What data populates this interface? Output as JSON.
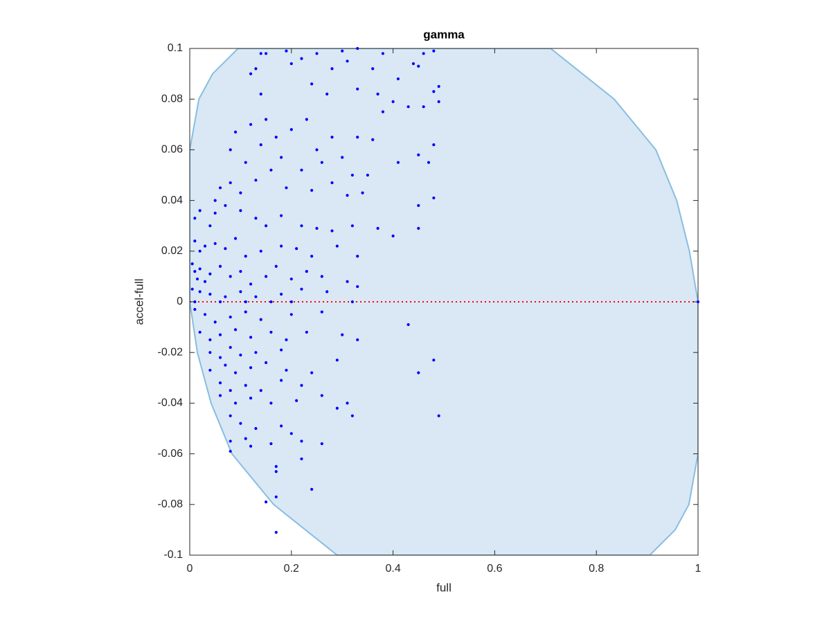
{
  "chart_data": {
    "type": "scatter",
    "title": "gamma",
    "xlabel": "full",
    "ylabel": "accel-full",
    "xlim": [
      0,
      1
    ],
    "ylim": [
      -0.1,
      0.1
    ],
    "xticks": [
      0,
      0.2,
      0.4,
      0.6,
      0.8,
      1
    ],
    "yticks": [
      -0.1,
      -0.08,
      -0.06,
      -0.04,
      -0.02,
      0,
      0.02,
      0.04,
      0.06,
      0.08,
      0.1
    ],
    "color": "#0000ff",
    "region": {
      "color": "#d9e8f4",
      "edge_color": "#88bde0",
      "x": [
        0,
        0.018,
        0.045,
        0.095,
        0.71,
        0.835,
        0.917,
        0.958,
        0.983,
        1,
        1,
        0.982,
        0.955,
        0.905,
        0.29,
        0.165,
        0.083,
        0.042,
        0.015,
        0
      ],
      "y": [
        0.06,
        0.08,
        0.09,
        0.1,
        0.1,
        0.08,
        0.06,
        0.04,
        0.02,
        0,
        -0.06,
        -0.08,
        -0.09,
        -0.1,
        -0.1,
        -0.08,
        -0.06,
        -0.04,
        -0.02,
        0
      ]
    },
    "reference_line": {
      "y": 0,
      "color": "#ff0000"
    },
    "x": [
      0.14,
      0.15,
      0.19,
      0.25,
      0.3,
      0.33,
      0.38,
      0.46,
      0.48,
      0.12,
      0.13,
      0.2,
      0.22,
      0.28,
      0.31,
      0.36,
      0.44,
      0.45,
      0.33,
      0.37,
      0.48,
      0.49,
      0.49,
      0.41,
      0.14,
      0.24,
      0.27,
      0.4,
      0.43,
      0.46,
      0.38,
      0.09,
      0.12,
      0.15,
      0.17,
      0.2,
      0.23,
      0.25,
      0.28,
      0.33,
      0.36,
      0.08,
      0.11,
      0.14,
      0.18,
      0.22,
      0.26,
      0.3,
      0.32,
      0.35,
      0.41,
      0.45,
      0.47,
      0.48,
      0.06,
      0.08,
      0.1,
      0.13,
      0.16,
      0.19,
      0.24,
      0.28,
      0.31,
      0.34,
      0.45,
      0.48,
      0.05,
      0.01,
      0.02,
      0.04,
      0.05,
      0.07,
      0.1,
      0.13,
      0.15,
      0.18,
      0.22,
      0.25,
      0.28,
      0.32,
      0.37,
      0.4,
      0.45,
      0.01,
      0.02,
      0.03,
      0.05,
      0.07,
      0.09,
      0.11,
      0.14,
      0.18,
      0.21,
      0.24,
      0.29,
      0.33,
      0.005,
      0.01,
      0.015,
      0.02,
      0.03,
      0.04,
      0.06,
      0.08,
      0.1,
      0.12,
      0.15,
      0.17,
      0.2,
      0.23,
      0.26,
      0.31,
      0.005,
      0.02,
      0.04,
      0.07,
      0.1,
      0.13,
      0.18,
      0.22,
      0.27,
      0.33,
      0.01,
      0.06,
      0.11,
      0.16,
      0.2,
      0.32,
      1,
      0.01,
      0.03,
      0.05,
      0.08,
      0.11,
      0.14,
      0.2,
      0.26,
      0.02,
      0.04,
      0.06,
      0.09,
      0.12,
      0.16,
      0.19,
      0.23,
      0.04,
      0.06,
      0.08,
      0.1,
      0.13,
      0.18,
      0.3,
      0.33,
      0.43,
      0.04,
      0.07,
      0.09,
      0.12,
      0.15,
      0.19,
      0.24,
      0.29,
      0.48,
      0.06,
      0.08,
      0.11,
      0.14,
      0.18,
      0.22,
      0.45,
      0.06,
      0.09,
      0.12,
      0.16,
      0.21,
      0.26,
      0.29,
      0.32,
      0.31,
      0.49,
      0.08,
      0.1,
      0.13,
      0.18,
      0.2,
      0.08,
      0.11,
      0.16,
      0.22,
      0.26,
      0.08,
      0.12,
      0.22,
      0.17,
      0.17,
      0.24,
      0.17,
      0.15,
      0.17
    ],
    "values": [
      0.098,
      0.098,
      0.099,
      0.098,
      0.099,
      0.1,
      0.098,
      0.098,
      0.099,
      0.09,
      0.092,
      0.094,
      0.096,
      0.092,
      0.095,
      0.092,
      0.094,
      0.093,
      0.084,
      0.082,
      0.083,
      0.085,
      0.079,
      0.088,
      0.082,
      0.086,
      0.082,
      0.079,
      0.077,
      0.077,
      0.075,
      0.067,
      0.07,
      0.072,
      0.065,
      0.068,
      0.072,
      0.06,
      0.065,
      0.065,
      0.064,
      0.06,
      0.055,
      0.062,
      0.057,
      0.052,
      0.055,
      0.057,
      0.05,
      0.05,
      0.055,
      0.058,
      0.055,
      0.062,
      0.045,
      0.047,
      0.043,
      0.048,
      0.052,
      0.045,
      0.044,
      0.047,
      0.042,
      0.043,
      0.038,
      0.041,
      0.04,
      0.033,
      0.036,
      0.03,
      0.035,
      0.038,
      0.036,
      0.033,
      0.03,
      0.034,
      0.03,
      0.029,
      0.028,
      0.03,
      0.029,
      0.026,
      0.029,
      0.024,
      0.02,
      0.022,
      0.023,
      0.021,
      0.025,
      0.018,
      0.02,
      0.022,
      0.021,
      0.018,
      0.022,
      0.018,
      0.015,
      0.012,
      0.009,
      0.013,
      0.008,
      0.011,
      0.014,
      0.01,
      0.012,
      0.007,
      0.01,
      0.014,
      0.009,
      0.012,
      0.01,
      0.008,
      0.005,
      0.004,
      0.003,
      0.002,
      0.004,
      0.002,
      0.003,
      0.005,
      0.004,
      0.006,
      0,
      0,
      0,
      0,
      0,
      0,
      0,
      -0.003,
      -0.005,
      -0.008,
      -0.006,
      -0.004,
      -0.007,
      -0.005,
      -0.004,
      -0.012,
      -0.015,
      -0.013,
      -0.011,
      -0.014,
      -0.012,
      -0.015,
      -0.012,
      -0.02,
      -0.022,
      -0.018,
      -0.021,
      -0.02,
      -0.019,
      -0.013,
      -0.015,
      -0.009,
      -0.027,
      -0.025,
      -0.028,
      -0.026,
      -0.024,
      -0.027,
      -0.028,
      -0.023,
      -0.023,
      -0.032,
      -0.035,
      -0.033,
      -0.035,
      -0.031,
      -0.033,
      -0.028,
      -0.037,
      -0.04,
      -0.038,
      -0.04,
      -0.039,
      -0.037,
      -0.042,
      -0.045,
      -0.04,
      -0.045,
      -0.045,
      -0.048,
      -0.05,
      -0.049,
      -0.052,
      -0.055,
      -0.054,
      -0.056,
      -0.055,
      -0.056,
      -0.059,
      -0.057,
      -0.062,
      -0.065,
      -0.067,
      -0.074,
      -0.077,
      -0.079,
      -0.091
    ]
  }
}
